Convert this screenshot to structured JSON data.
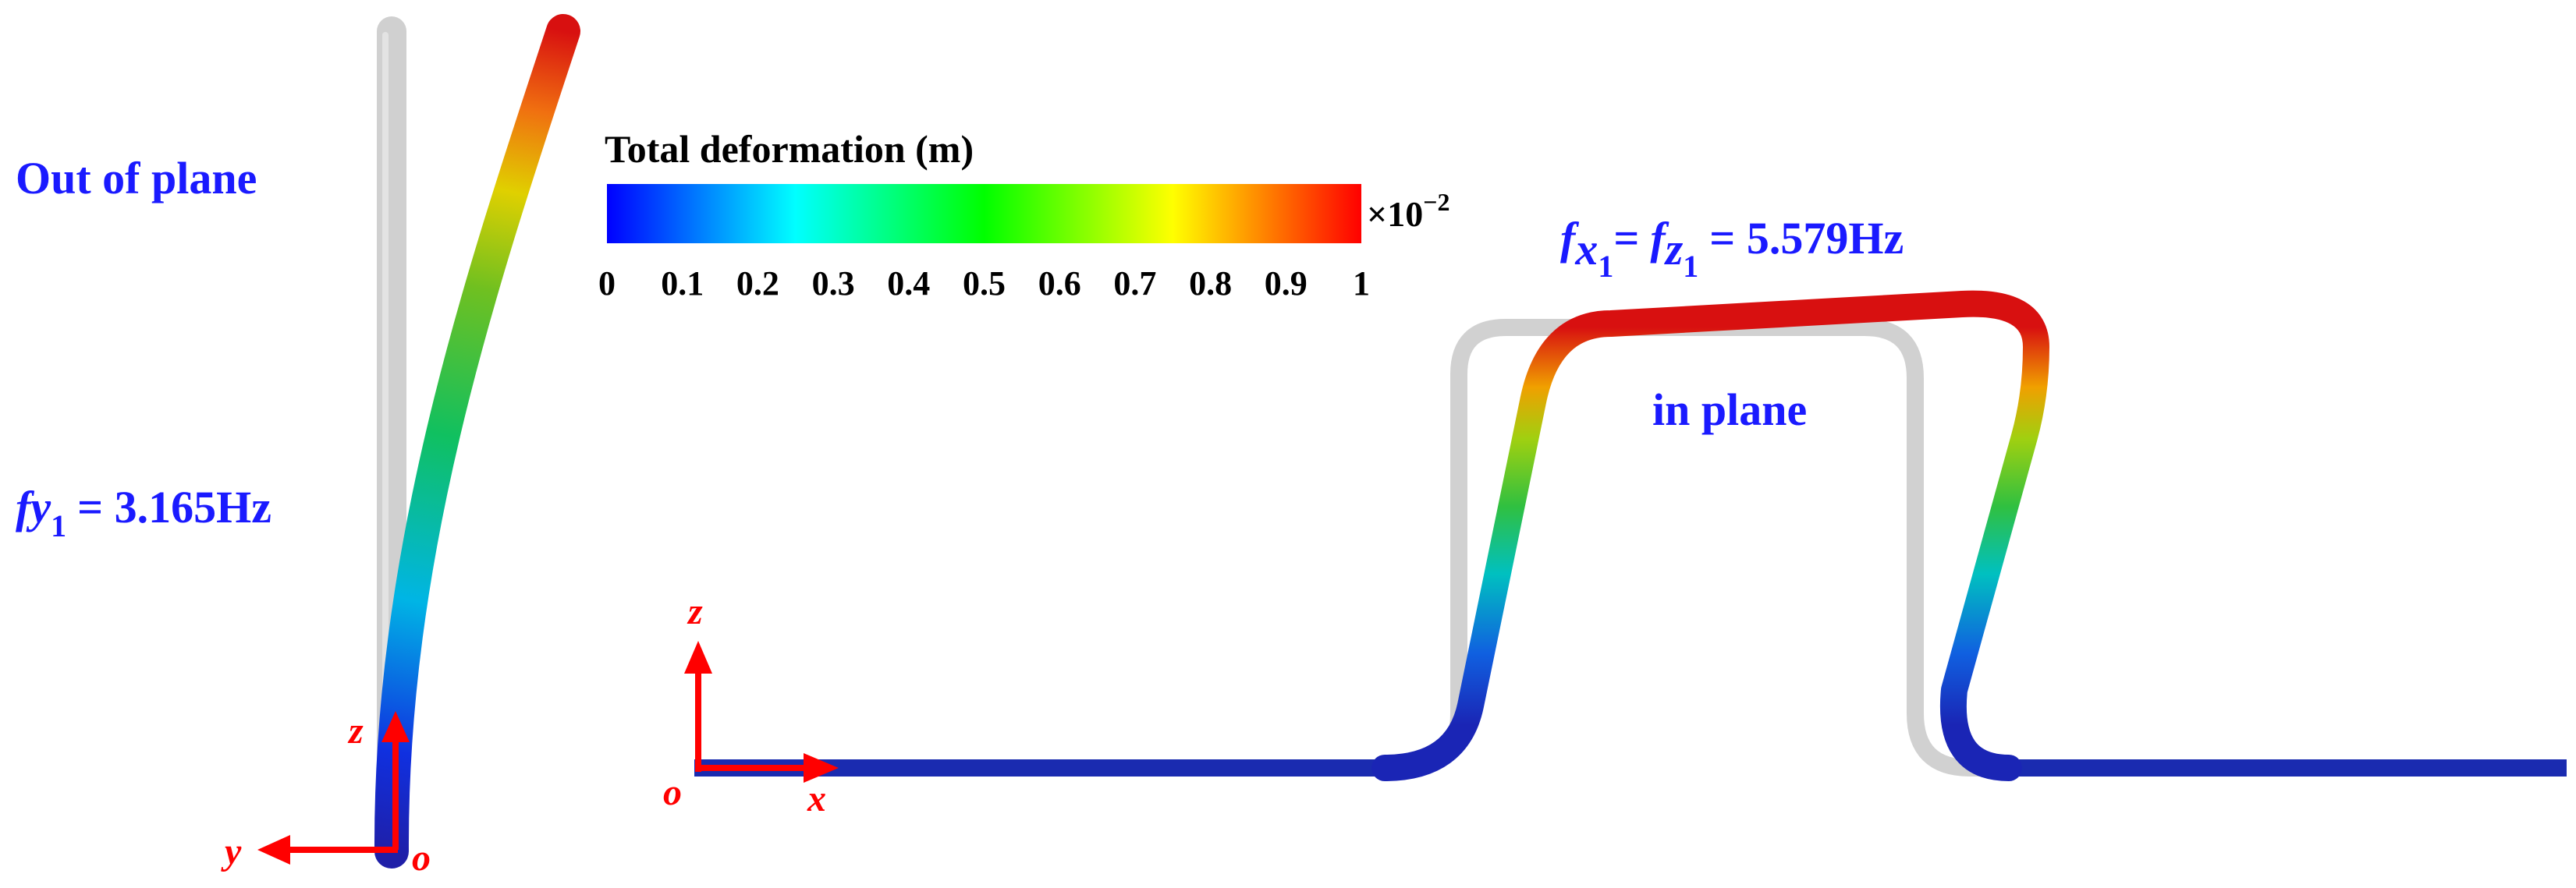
{
  "colorbar": {
    "title": "Total deformation (m)",
    "multiplier_base": "×10",
    "multiplier_exponent": "−2",
    "ticks": [
      "0",
      "0.1",
      "0.2",
      "0.3",
      "0.4",
      "0.5",
      "0.6",
      "0.7",
      "0.8",
      "0.9",
      "1"
    ],
    "colors": [
      "#0000ff",
      "#00ffff",
      "#00ff00",
      "#ffff00",
      "#ff0000"
    ]
  },
  "out_of_plane": {
    "mode_label": "Out of plane",
    "freq_f": "f",
    "freq_var": "y",
    "freq_sub": "1",
    "freq_value": "= 3.165Hz",
    "axis_z": "z",
    "axis_y": "y",
    "axis_o": "o"
  },
  "in_plane": {
    "mode_label": "in plane",
    "freq_f1": "f",
    "freq_var1": "x",
    "freq_sub1": "1",
    "freq_eq": "=",
    "freq_f2": "f",
    "freq_var2": "z",
    "freq_sub2": "1",
    "freq_value": "= 5.579Hz",
    "axis_z": "z",
    "axis_x": "x",
    "axis_o": "o"
  },
  "colors": {
    "label_blue": "#1a1aff",
    "axis_red": "#ff0000",
    "undeformed_gray": "#c8c8c8",
    "pipe_blue": "#1a2bb0",
    "pipe_red": "#d01010"
  }
}
